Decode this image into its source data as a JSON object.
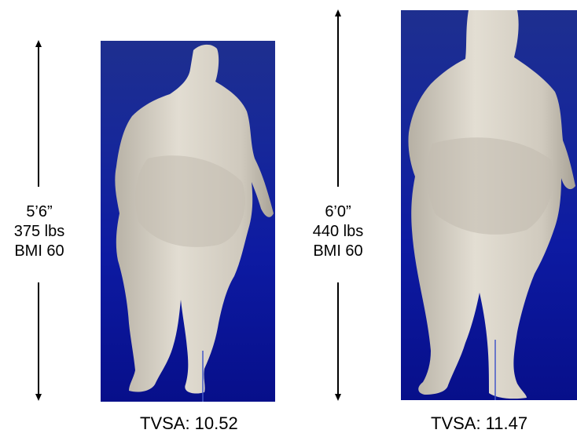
{
  "left": {
    "height": "5’6”",
    "weight": "375 lbs",
    "bmi": "BMI 60",
    "tvsa": "TVSA: 10.52"
  },
  "right": {
    "height": "6’0”",
    "weight": "440 lbs",
    "bmi": "BMI 60",
    "tvsa": "TVSA: 11.47"
  },
  "colors": {
    "panel_top": "#1e2f8f",
    "panel_bottom": "#070f8a",
    "body_scan": "#d8d2c6"
  }
}
